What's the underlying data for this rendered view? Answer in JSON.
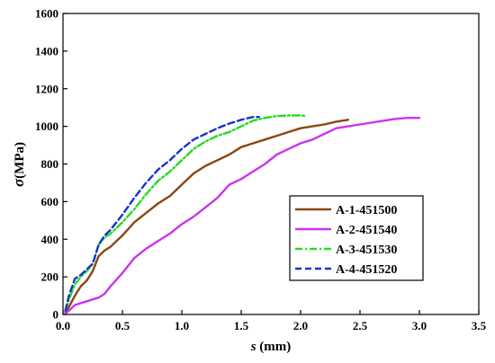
{
  "chart_data": {
    "type": "line",
    "xlabel_symbol": "s",
    "xlabel_unit": " (mm)",
    "ylabel_symbol": "σ",
    "ylabel_unit": "(MPa)",
    "xlim": [
      0,
      3.5
    ],
    "ylim": [
      0,
      1600
    ],
    "xticks": [
      "0.0",
      "0.5",
      "1.0",
      "1.5",
      "2.0",
      "2.5",
      "3.0",
      "3.5"
    ],
    "yticks": [
      "0",
      "200",
      "400",
      "600",
      "800",
      "1000",
      "1200",
      "1400",
      "1600"
    ],
    "grid": false,
    "legend_position": "bottom-right",
    "series": [
      {
        "name": "A-1-451500",
        "color": "#8B4513",
        "dash": "solid",
        "x": [
          0.02,
          0.05,
          0.1,
          0.15,
          0.2,
          0.25,
          0.3,
          0.35,
          0.4,
          0.45,
          0.5,
          0.6,
          0.7,
          0.8,
          0.9,
          1.0,
          1.1,
          1.2,
          1.3,
          1.4,
          1.5,
          1.6,
          1.7,
          1.8,
          1.9,
          2.0,
          2.1,
          2.2,
          2.3,
          2.4
        ],
        "y": [
          10,
          40,
          100,
          150,
          180,
          230,
          310,
          340,
          360,
          390,
          420,
          490,
          540,
          590,
          630,
          690,
          750,
          790,
          820,
          850,
          890,
          910,
          930,
          950,
          970,
          990,
          1000,
          1010,
          1025,
          1035
        ]
      },
      {
        "name": "A-2-451540",
        "color": "#CC33EE",
        "dash": "solid",
        "x": [
          0.02,
          0.05,
          0.1,
          0.2,
          0.3,
          0.35,
          0.4,
          0.5,
          0.6,
          0.7,
          0.8,
          0.9,
          1.0,
          1.1,
          1.2,
          1.3,
          1.4,
          1.5,
          1.6,
          1.7,
          1.8,
          1.9,
          2.0,
          2.1,
          2.2,
          2.3,
          2.4,
          2.5,
          2.6,
          2.7,
          2.8,
          2.9,
          3.0
        ],
        "y": [
          5,
          20,
          50,
          70,
          90,
          110,
          150,
          220,
          300,
          350,
          390,
          430,
          480,
          520,
          570,
          620,
          690,
          720,
          760,
          800,
          850,
          880,
          910,
          930,
          960,
          990,
          1000,
          1010,
          1020,
          1030,
          1040,
          1045,
          1045
        ]
      },
      {
        "name": "A-3-451530",
        "color": "#22DD22",
        "dash": "dashdot",
        "x": [
          0.02,
          0.05,
          0.1,
          0.15,
          0.2,
          0.25,
          0.3,
          0.35,
          0.4,
          0.5,
          0.6,
          0.7,
          0.8,
          0.9,
          1.0,
          1.1,
          1.2,
          1.3,
          1.4,
          1.5,
          1.6,
          1.7,
          1.8,
          1.9,
          2.0,
          2.05
        ],
        "y": [
          20,
          80,
          160,
          200,
          230,
          270,
          370,
          410,
          430,
          490,
          560,
          640,
          710,
          760,
          820,
          880,
          920,
          950,
          970,
          1000,
          1030,
          1045,
          1055,
          1058,
          1058,
          1055
        ]
      },
      {
        "name": "A-4-451520",
        "color": "#1A33CC",
        "dash": "dashed",
        "x": [
          0.02,
          0.05,
          0.1,
          0.15,
          0.2,
          0.25,
          0.3,
          0.35,
          0.4,
          0.5,
          0.6,
          0.7,
          0.8,
          0.9,
          1.0,
          1.1,
          1.2,
          1.3,
          1.4,
          1.5,
          1.6,
          1.65
        ],
        "y": [
          20,
          100,
          190,
          210,
          240,
          270,
          370,
          420,
          450,
          530,
          620,
          700,
          770,
          820,
          880,
          930,
          960,
          990,
          1015,
          1035,
          1050,
          1050
        ]
      }
    ]
  }
}
